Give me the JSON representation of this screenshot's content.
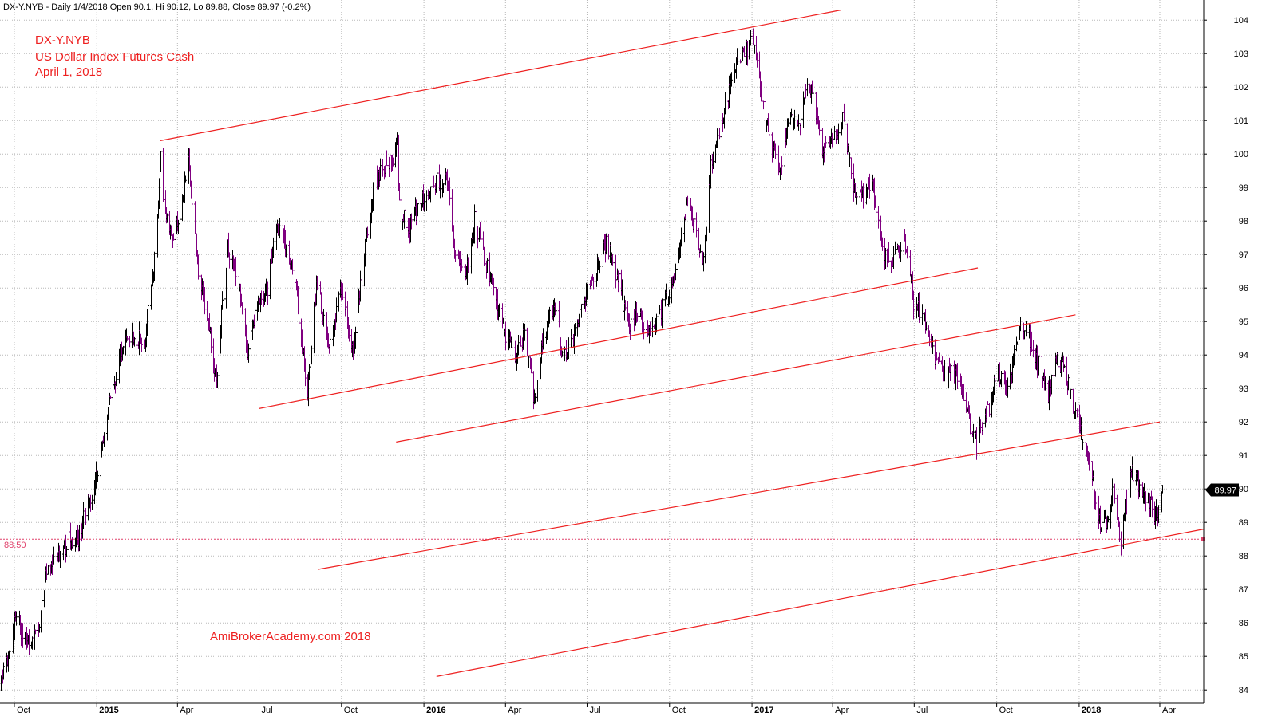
{
  "header": {
    "info": "DX-Y.NYB - Daily 1/4/2018 Open 90.1, Hi 90.12, Lo 89.88, Close 89.97 (-0.2%)"
  },
  "annotations": {
    "title": [
      "DX-Y.NYB",
      "US Dollar Index Futures Cash",
      "April 1, 2018"
    ],
    "watermark": "AmiBrokerAcademy.com  2018"
  },
  "colors": {
    "up_bar": "#000000",
    "down_bar": "#800080",
    "trendline": "#ee2020",
    "level_line": "#e0406a",
    "price_label_bg": "#000000"
  },
  "chart_data": {
    "type": "line",
    "style": "ohlc_bars",
    "title": "",
    "xlabel": "",
    "ylabel": "",
    "ylim": [
      83.6,
      104.6
    ],
    "xlim": [
      "2014-09-15",
      "2018-05-20"
    ],
    "grid": true,
    "y_ticks": [
      84,
      85,
      86,
      87,
      88,
      89,
      90,
      91,
      92,
      93,
      94,
      95,
      96,
      97,
      98,
      99,
      100,
      101,
      102,
      103,
      104
    ],
    "y_tick_labels": [
      "84",
      "85",
      "86",
      "87",
      "88",
      "89",
      "90",
      "91",
      "92",
      "93",
      "94",
      "95",
      "96",
      "97",
      "98",
      "99",
      "100",
      "101",
      "102",
      "103",
      "104"
    ],
    "x_ticks": [
      {
        "date": "2014-10-01",
        "label": "Oct",
        "bold": false
      },
      {
        "date": "2015-01-01",
        "label": "2015",
        "bold": true
      },
      {
        "date": "2015-04-01",
        "label": "Apr",
        "bold": false
      },
      {
        "date": "2015-07-01",
        "label": "Jul",
        "bold": false
      },
      {
        "date": "2015-10-01",
        "label": "Oct",
        "bold": false
      },
      {
        "date": "2016-01-01",
        "label": "2016",
        "bold": true
      },
      {
        "date": "2016-04-01",
        "label": "Apr",
        "bold": false
      },
      {
        "date": "2016-07-01",
        "label": "Jul",
        "bold": false
      },
      {
        "date": "2016-10-01",
        "label": "Oct",
        "bold": false
      },
      {
        "date": "2017-01-01",
        "label": "2017",
        "bold": true
      },
      {
        "date": "2017-04-01",
        "label": "Apr",
        "bold": false
      },
      {
        "date": "2017-07-01",
        "label": "Jul",
        "bold": false
      },
      {
        "date": "2017-10-01",
        "label": "Oct",
        "bold": false
      },
      {
        "date": "2018-01-01",
        "label": "2018",
        "bold": true
      },
      {
        "date": "2018-04-01",
        "label": "Apr",
        "bold": false
      }
    ],
    "last_price": {
      "value": 89.97,
      "label": "89.97"
    },
    "level_line": {
      "value": 88.5,
      "label": "88.50"
    },
    "series": [
      {
        "kind": "close_path",
        "points": [
          [
            "2014-09-16",
            84.2
          ],
          [
            "2014-09-25",
            85.0
          ],
          [
            "2014-10-03",
            86.3
          ],
          [
            "2014-10-08",
            85.8
          ],
          [
            "2014-10-16",
            85.3
          ],
          [
            "2014-10-27",
            85.8
          ],
          [
            "2014-11-07",
            87.7
          ],
          [
            "2014-11-20",
            88.0
          ],
          [
            "2014-12-02",
            88.5
          ],
          [
            "2014-12-10",
            88.4
          ],
          [
            "2014-12-19",
            89.3
          ],
          [
            "2014-12-31",
            90.3
          ],
          [
            "2015-01-15",
            92.5
          ],
          [
            "2015-01-27",
            94.0
          ],
          [
            "2015-02-04",
            94.6
          ],
          [
            "2015-02-10",
            94.6
          ],
          [
            "2015-02-23",
            94.4
          ],
          [
            "2015-03-06",
            96.8
          ],
          [
            "2015-03-13",
            100.0
          ],
          [
            "2015-03-18",
            98.1
          ],
          [
            "2015-03-27",
            97.5
          ],
          [
            "2015-04-03",
            98.0
          ],
          [
            "2015-04-13",
            99.7
          ],
          [
            "2015-04-24",
            96.6
          ],
          [
            "2015-05-04",
            95.1
          ],
          [
            "2015-05-14",
            93.3
          ],
          [
            "2015-05-27",
            97.2
          ],
          [
            "2015-06-08",
            96.0
          ],
          [
            "2015-06-18",
            94.0
          ],
          [
            "2015-07-01",
            95.8
          ],
          [
            "2015-07-10",
            96.0
          ],
          [
            "2015-07-20",
            97.9
          ],
          [
            "2015-07-31",
            97.3
          ],
          [
            "2015-08-10",
            96.1
          ],
          [
            "2015-08-24",
            92.8
          ],
          [
            "2015-09-03",
            96.1
          ],
          [
            "2015-09-18",
            94.3
          ],
          [
            "2015-10-01",
            96.0
          ],
          [
            "2015-10-14",
            94.1
          ],
          [
            "2015-10-26",
            97.0
          ],
          [
            "2015-11-06",
            99.2
          ],
          [
            "2015-11-20",
            99.6
          ],
          [
            "2015-12-02",
            100.2
          ],
          [
            "2015-12-04",
            98.4
          ],
          [
            "2015-12-15",
            97.8
          ],
          [
            "2015-12-31",
            98.7
          ],
          [
            "2016-01-12",
            99.2
          ],
          [
            "2016-01-28",
            99.2
          ],
          [
            "2016-02-05",
            97.0
          ],
          [
            "2016-02-19",
            96.5
          ],
          [
            "2016-02-26",
            98.1
          ],
          [
            "2016-03-10",
            96.7
          ],
          [
            "2016-03-22",
            95.6
          ],
          [
            "2016-04-01",
            94.6
          ],
          [
            "2016-04-12",
            94.0
          ],
          [
            "2016-04-22",
            94.7
          ],
          [
            "2016-05-03",
            92.6
          ],
          [
            "2016-05-13",
            94.6
          ],
          [
            "2016-05-25",
            95.5
          ],
          [
            "2016-06-03",
            93.9
          ],
          [
            "2016-06-15",
            94.4
          ],
          [
            "2016-06-24",
            95.5
          ],
          [
            "2016-07-08",
            96.3
          ],
          [
            "2016-07-22",
            97.4
          ],
          [
            "2016-08-05",
            96.2
          ],
          [
            "2016-08-17",
            94.7
          ],
          [
            "2016-08-26",
            95.4
          ],
          [
            "2016-09-08",
            94.6
          ],
          [
            "2016-09-22",
            95.4
          ],
          [
            "2016-10-06",
            96.3
          ],
          [
            "2016-10-20",
            98.6
          ],
          [
            "2016-11-01",
            97.5
          ],
          [
            "2016-11-08",
            96.9
          ],
          [
            "2016-11-16",
            99.6
          ],
          [
            "2016-11-30",
            101.2
          ],
          [
            "2016-12-15",
            102.8
          ],
          [
            "2016-12-28",
            103.2
          ],
          [
            "2017-01-03",
            103.4
          ],
          [
            "2017-01-10",
            101.9
          ],
          [
            "2017-01-18",
            100.8
          ],
          [
            "2017-01-31",
            99.5
          ],
          [
            "2017-02-10",
            100.9
          ],
          [
            "2017-02-23",
            101.0
          ],
          [
            "2017-03-03",
            102.1
          ],
          [
            "2017-03-10",
            101.8
          ],
          [
            "2017-03-20",
            100.1
          ],
          [
            "2017-04-04",
            100.5
          ],
          [
            "2017-04-12",
            101.0
          ],
          [
            "2017-04-24",
            99.0
          ],
          [
            "2017-05-05",
            98.8
          ],
          [
            "2017-05-15",
            99.3
          ],
          [
            "2017-05-25",
            97.3
          ],
          [
            "2017-06-05",
            96.7
          ],
          [
            "2017-06-20",
            97.6
          ],
          [
            "2017-06-30",
            95.6
          ],
          [
            "2017-07-14",
            94.9
          ],
          [
            "2017-07-27",
            93.6
          ],
          [
            "2017-08-08",
            93.5
          ],
          [
            "2017-08-17",
            93.4
          ],
          [
            "2017-08-29",
            92.2
          ],
          [
            "2017-09-08",
            91.3
          ],
          [
            "2017-09-20",
            92.3
          ],
          [
            "2017-10-02",
            93.5
          ],
          [
            "2017-10-12",
            93.0
          ],
          [
            "2017-10-26",
            94.8
          ],
          [
            "2017-11-03",
            94.8
          ],
          [
            "2017-11-16",
            93.8
          ],
          [
            "2017-11-27",
            92.8
          ],
          [
            "2017-12-07",
            93.9
          ],
          [
            "2017-12-20",
            93.2
          ],
          [
            "2017-12-29",
            92.1
          ],
          [
            "2018-01-12",
            90.8
          ],
          [
            "2018-01-25",
            88.9
          ],
          [
            "2018-02-01",
            88.9
          ],
          [
            "2018-02-08",
            90.1
          ],
          [
            "2018-02-16",
            88.4
          ],
          [
            "2018-02-28",
            90.5
          ],
          [
            "2018-03-09",
            90.1
          ],
          [
            "2018-03-15",
            89.8
          ],
          [
            "2018-03-27",
            89.2
          ],
          [
            "2018-04-04",
            89.97
          ]
        ]
      }
    ],
    "trendlines": [
      {
        "from": [
          "2015-03-13",
          100.4
        ],
        "to": [
          "2017-04-10",
          104.3
        ]
      },
      {
        "from": [
          "2015-07-01",
          92.4
        ],
        "to": [
          "2017-09-10",
          96.6
        ]
      },
      {
        "from": [
          "2015-12-01",
          91.4
        ],
        "to": [
          "2017-12-28",
          95.2
        ]
      },
      {
        "from": [
          "2015-09-05",
          87.6
        ],
        "to": [
          "2018-04-01",
          92.0
        ]
      },
      {
        "from": [
          "2016-01-15",
          84.4
        ],
        "to": [
          "2018-05-20",
          88.8
        ]
      }
    ]
  }
}
